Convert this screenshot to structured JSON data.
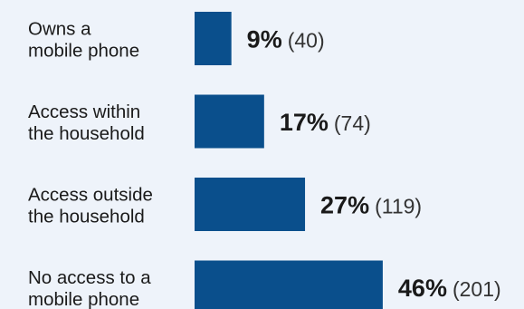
{
  "chart_data": {
    "type": "bar",
    "orientation": "horizontal",
    "categories": [
      [
        "Owns a",
        "mobile phone"
      ],
      [
        "Access within",
        "the household"
      ],
      [
        "Access outside",
        "the household"
      ],
      [
        "No access to a",
        "mobile phone"
      ]
    ],
    "values": [
      9,
      17,
      27,
      46
    ],
    "value_labels": [
      "9%",
      "17%",
      "27%",
      "46%"
    ],
    "counts": [
      40,
      74,
      119,
      201
    ],
    "count_labels": [
      "(40)",
      "(74)",
      "(119)",
      "(201)"
    ],
    "unit": "%",
    "bar_color": "#0a4f8c",
    "background_color": "#eef3fa",
    "grid": false,
    "legend": "none"
  }
}
